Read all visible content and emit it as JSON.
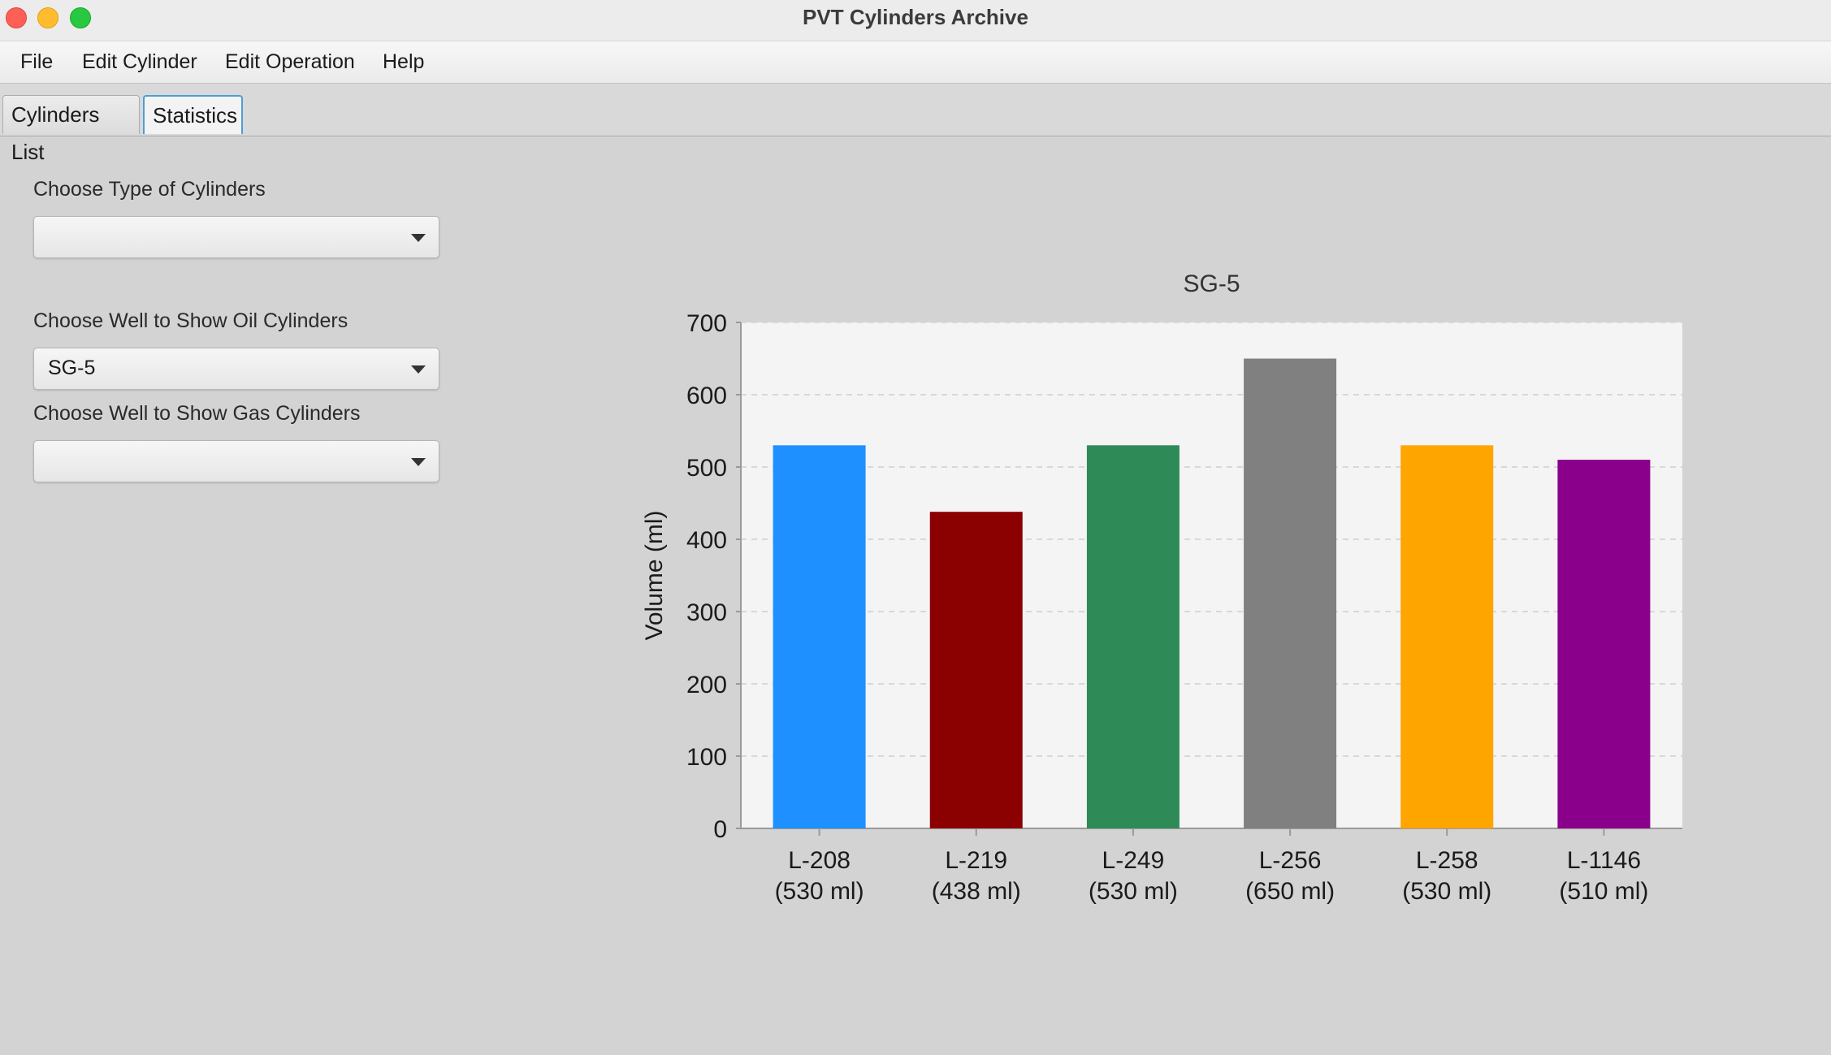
{
  "window": {
    "title": "PVT Cylinders Archive"
  },
  "menu": {
    "items": [
      "File",
      "Edit Cylinder",
      "Edit Operation",
      "Help"
    ]
  },
  "tabs": [
    {
      "label": "Cylinders List",
      "active": false
    },
    {
      "label": "Statistics",
      "active": true
    }
  ],
  "filters": {
    "type_label": "Choose Type of Cylinders",
    "type_value": "",
    "oil_label": "Choose Well to Show Oil Cylinders",
    "oil_value": "SG-5",
    "gas_label": "Choose Well to Show Gas Cylinders",
    "gas_value": ""
  },
  "chart_data": {
    "type": "bar",
    "title": "SG-5",
    "xlabel": "",
    "ylabel": "Volume (ml)",
    "ylim": [
      0,
      700
    ],
    "yticks": [
      0,
      100,
      200,
      300,
      400,
      500,
      600,
      700
    ],
    "grid": true,
    "legend": "none",
    "categories": [
      [
        "L-208",
        "(530 ml)"
      ],
      [
        "L-219",
        "(438 ml)"
      ],
      [
        "L-249",
        "(530 ml)"
      ],
      [
        "L-256",
        "(650 ml)"
      ],
      [
        "L-258",
        "(530 ml)"
      ],
      [
        "L-1146",
        "(510 ml)"
      ]
    ],
    "values": [
      530,
      438,
      530,
      650,
      530,
      510
    ],
    "colors": [
      "#1e90ff",
      "#8b0000",
      "#2e8b57",
      "#808080",
      "#ffa500",
      "#8b008b"
    ]
  }
}
